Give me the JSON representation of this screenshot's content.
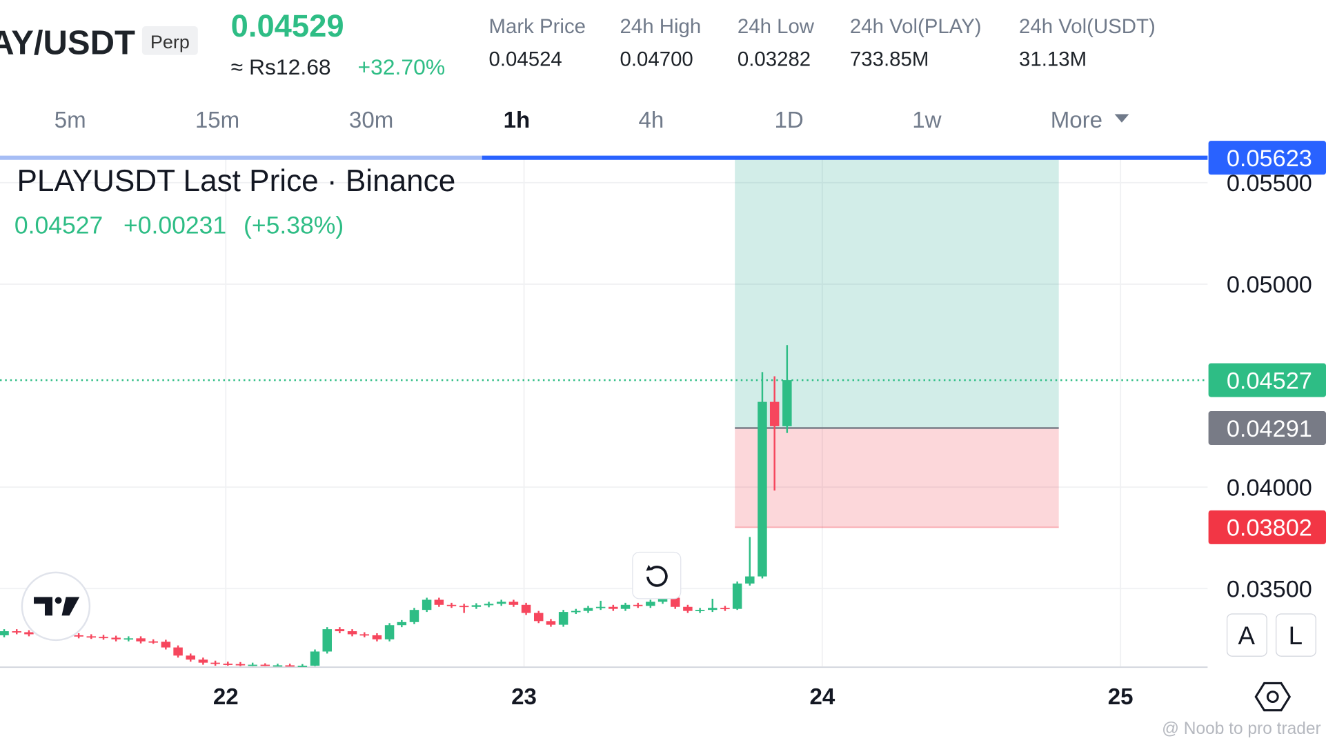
{
  "header": {
    "symbol": "AY/USDT",
    "badge": "Perp",
    "price": "0.04529",
    "fiat": "≈ Rs12.68",
    "change": "+32.70%",
    "stats": [
      {
        "label": "Mark Price",
        "value": "0.04524"
      },
      {
        "label": "24h High",
        "value": "0.04700"
      },
      {
        "label": "24h Low",
        "value": "0.03282"
      },
      {
        "label": "24h Vol(PLAY)",
        "value": "733.85M"
      },
      {
        "label": "24h Vol(USDT)",
        "value": "31.13M"
      }
    ]
  },
  "timeframes": [
    "5m",
    "15m",
    "30m",
    "1h",
    "4h",
    "1D",
    "1w",
    "More"
  ],
  "active_timeframe": 3,
  "legend": {
    "title": "PLAYUSDT Last Price · Binance",
    "change": "+0.00231",
    "percent": "(+5.38%)"
  },
  "buttons": [
    "A",
    "L"
  ],
  "watermark": "@ Noob to pro trader",
  "chart_data": {
    "type": "candlestick",
    "up_color": "#2ebd85",
    "down_color": "#f6465d",
    "xlim": [
      21.243,
      25.292
    ],
    "xticks": [
      22,
      23,
      24,
      25
    ],
    "ylim": [
      0.03117,
      0.05625
    ],
    "yticks": [
      {
        "value": 0.035,
        "label": "0.03500"
      },
      {
        "value": 0.04,
        "label": "0.04000"
      },
      {
        "value": 0.05,
        "label": "0.05000"
      },
      {
        "value": 0.055,
        "label": "0.05500"
      }
    ],
    "grid": true,
    "last_price": 0.04527,
    "position": {
      "x": [
        23.707,
        24.793
      ],
      "target": 0.05623,
      "entry": 0.04291,
      "stop": 0.03802
    },
    "x": [
      21.257,
      21.299,
      21.34,
      21.382,
      21.424,
      21.465,
      21.507,
      21.549,
      21.59,
      21.632,
      21.674,
      21.715,
      21.757,
      21.799,
      21.84,
      21.882,
      21.924,
      21.965,
      22.007,
      22.049,
      22.09,
      22.132,
      22.174,
      22.215,
      22.257,
      22.299,
      22.34,
      22.382,
      22.424,
      22.465,
      22.507,
      22.549,
      22.59,
      22.632,
      22.674,
      22.715,
      22.757,
      22.799,
      22.84,
      22.882,
      22.924,
      22.965,
      23.007,
      23.049,
      23.09,
      23.132,
      23.174,
      23.215,
      23.257,
      23.299,
      23.34,
      23.382,
      23.424,
      23.465,
      23.507,
      23.549,
      23.59,
      23.632,
      23.674,
      23.715,
      23.757,
      23.799,
      23.84,
      23.882
    ],
    "open": [
      0.0327,
      0.0329,
      0.03285,
      0.03275,
      0.0327,
      0.03268,
      0.0327,
      0.03265,
      0.03262,
      0.03258,
      0.0325,
      0.03255,
      0.0324,
      0.03238,
      0.0321,
      0.0317,
      0.0315,
      0.03135,
      0.0313,
      0.03128,
      0.03125,
      0.03125,
      0.03122,
      0.03122,
      0.0312,
      0.0312,
      0.0319,
      0.033,
      0.0329,
      0.03275,
      0.0327,
      0.0325,
      0.0332,
      0.03335,
      0.03395,
      0.03445,
      0.0342,
      0.03415,
      0.0341,
      0.03418,
      0.03425,
      0.03435,
      0.0342,
      0.0338,
      0.0334,
      0.03322,
      0.03385,
      0.0339,
      0.03405,
      0.0341,
      0.034,
      0.0342,
      0.03415,
      0.03435,
      0.03455,
      0.0341,
      0.0339,
      0.03395,
      0.03405,
      0.034,
      0.03525,
      0.0356,
      0.0442,
      0.043
    ],
    "high": [
      0.033,
      0.033,
      0.03295,
      0.03285,
      0.0328,
      0.0328,
      0.0328,
      0.03275,
      0.03272,
      0.03268,
      0.03265,
      0.03265,
      0.0325,
      0.03248,
      0.0322,
      0.0318,
      0.0316,
      0.03145,
      0.0314,
      0.03138,
      0.03135,
      0.03132,
      0.0313,
      0.0313,
      0.03128,
      0.032,
      0.0331,
      0.0331,
      0.033,
      0.03285,
      0.0328,
      0.0333,
      0.03345,
      0.03405,
      0.03455,
      0.03455,
      0.0343,
      0.03425,
      0.03428,
      0.03435,
      0.03445,
      0.03445,
      0.0343,
      0.0339,
      0.0335,
      0.03395,
      0.034,
      0.03415,
      0.0344,
      0.0342,
      0.0343,
      0.0343,
      0.03445,
      0.03465,
      0.03465,
      0.0342,
      0.03405,
      0.0345,
      0.03415,
      0.03535,
      0.03754,
      0.04567,
      0.04546,
      0.047
    ],
    "low": [
      0.0326,
      0.03275,
      0.03265,
      0.0326,
      0.03258,
      0.03258,
      0.03255,
      0.03252,
      0.03248,
      0.0324,
      0.0324,
      0.0323,
      0.03228,
      0.032,
      0.0316,
      0.0314,
      0.03125,
      0.0312,
      0.0312,
      0.03118,
      0.03118,
      0.03118,
      0.03118,
      0.03118,
      0.03118,
      0.03118,
      0.0318,
      0.0328,
      0.03265,
      0.0326,
      0.0324,
      0.0324,
      0.0331,
      0.03325,
      0.03385,
      0.0341,
      0.03405,
      0.0338,
      0.034,
      0.03408,
      0.03415,
      0.0341,
      0.0337,
      0.0333,
      0.03312,
      0.03312,
      0.03375,
      0.0338,
      0.03395,
      0.0339,
      0.0339,
      0.03405,
      0.03405,
      0.03425,
      0.034,
      0.0338,
      0.0338,
      0.03385,
      0.0339,
      0.03395,
      0.03515,
      0.0355,
      0.03983,
      0.04267
    ],
    "close": [
      0.0329,
      0.03285,
      0.03275,
      0.0327,
      0.03268,
      0.0327,
      0.03265,
      0.03262,
      0.03258,
      0.0325,
      0.03255,
      0.0324,
      0.03238,
      0.0321,
      0.0317,
      0.0315,
      0.03135,
      0.0313,
      0.03128,
      0.03125,
      0.03125,
      0.03122,
      0.03122,
      0.0312,
      0.0312,
      0.0319,
      0.033,
      0.0329,
      0.03275,
      0.0327,
      0.0325,
      0.0332,
      0.03335,
      0.03395,
      0.03445,
      0.0342,
      0.03415,
      0.0341,
      0.03418,
      0.03425,
      0.03435,
      0.0342,
      0.0338,
      0.0334,
      0.03322,
      0.03385,
      0.0339,
      0.03405,
      0.0341,
      0.034,
      0.0342,
      0.03415,
      0.03435,
      0.03455,
      0.0341,
      0.0339,
      0.03395,
      0.03405,
      0.034,
      0.03525,
      0.0356,
      0.0442,
      0.043,
      0.04527
    ]
  }
}
